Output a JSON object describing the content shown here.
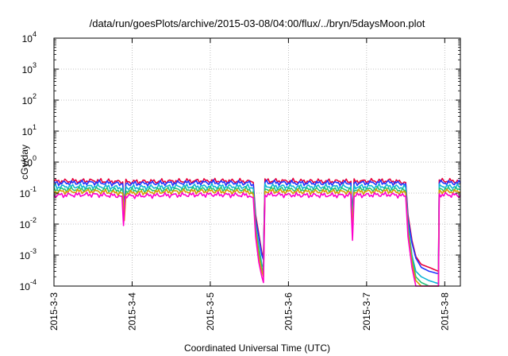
{
  "chart_data": {
    "type": "line",
    "title": "/data/run/goesPlots/archive/2015-03-08/04:00/flux/../bryn/5daysMoon.plot",
    "xlabel": "Coordinated Universal Time (UTC)",
    "ylabel": "cGy/day",
    "yscale": "log",
    "ylim": [
      0.0001,
      10000
    ],
    "xlim_days": [
      0,
      5.2
    ],
    "x_ticks": [
      {
        "label": "2015-3-3",
        "day": 0
      },
      {
        "label": "2015-3-4",
        "day": 1
      },
      {
        "label": "2015-3-5",
        "day": 2
      },
      {
        "label": "2015-3-6",
        "day": 3
      },
      {
        "label": "2015-3-7",
        "day": 4
      },
      {
        "label": "2015-3-8",
        "day": 5
      }
    ],
    "y_ticks": [
      {
        "base": "10",
        "exp": "-4",
        "value": 0.0001
      },
      {
        "base": "10",
        "exp": "-3",
        "value": 0.001
      },
      {
        "base": "10",
        "exp": "-2",
        "value": 0.01
      },
      {
        "base": "10",
        "exp": "-1",
        "value": 0.1
      },
      {
        "base": "10",
        "exp": "0",
        "value": 1
      },
      {
        "base": "10",
        "exp": "1",
        "value": 10
      },
      {
        "base": "10",
        "exp": "2",
        "value": 100
      },
      {
        "base": "10",
        "exp": "3",
        "value": 1000
      },
      {
        "base": "10",
        "exp": "4",
        "value": 10000
      }
    ],
    "grid": true,
    "series": [
      {
        "color": "#e8003a",
        "baseline": 0.24,
        "points": [
          [
            0,
            0.24
          ],
          [
            0.5,
            0.25
          ],
          [
            0.88,
            0.23
          ],
          [
            0.9,
            0.03
          ],
          [
            0.92,
            0.23
          ],
          [
            1.4,
            0.24
          ],
          [
            2.0,
            0.25
          ],
          [
            2.5,
            0.24
          ],
          [
            2.55,
            0.22
          ],
          [
            2.58,
            0.02
          ],
          [
            2.62,
            0.005
          ],
          [
            2.66,
            0.0012
          ],
          [
            2.68,
            0.0008
          ],
          [
            2.7,
            0.25
          ],
          [
            3.2,
            0.24
          ],
          [
            3.8,
            0.24
          ],
          [
            3.8,
            0.14
          ],
          [
            3.82,
            0.02
          ],
          [
            3.84,
            0.24
          ],
          [
            4.3,
            0.25
          ],
          [
            4.5,
            0.22
          ],
          [
            4.53,
            0.02
          ],
          [
            4.58,
            0.003
          ],
          [
            4.63,
            0.0009
          ],
          [
            4.7,
            0.0005
          ],
          [
            4.8,
            0.0004
          ],
          [
            4.92,
            0.0003
          ],
          [
            4.93,
            0.25
          ],
          [
            5.2,
            0.24
          ]
        ]
      },
      {
        "color": "#2233ff",
        "baseline": 0.21,
        "points": [
          [
            0,
            0.21
          ],
          [
            0.5,
            0.22
          ],
          [
            0.88,
            0.2
          ],
          [
            0.9,
            0.025
          ],
          [
            0.92,
            0.2
          ],
          [
            1.4,
            0.21
          ],
          [
            2.0,
            0.22
          ],
          [
            2.5,
            0.21
          ],
          [
            2.55,
            0.19
          ],
          [
            2.58,
            0.015
          ],
          [
            2.62,
            0.004
          ],
          [
            2.66,
            0.001
          ],
          [
            2.68,
            0.0007
          ],
          [
            2.7,
            0.22
          ],
          [
            3.2,
            0.21
          ],
          [
            3.8,
            0.21
          ],
          [
            3.8,
            0.12
          ],
          [
            3.82,
            0.018
          ],
          [
            3.84,
            0.21
          ],
          [
            4.3,
            0.22
          ],
          [
            4.5,
            0.2
          ],
          [
            4.53,
            0.015
          ],
          [
            4.58,
            0.0025
          ],
          [
            4.63,
            0.0008
          ],
          [
            4.7,
            0.0004
          ],
          [
            4.8,
            0.0003
          ],
          [
            4.92,
            0.00025
          ],
          [
            4.93,
            0.22
          ],
          [
            5.2,
            0.21
          ]
        ]
      },
      {
        "color": "#10b6d6",
        "baseline": 0.16,
        "points": [
          [
            0,
            0.16
          ],
          [
            0.5,
            0.165
          ],
          [
            0.88,
            0.15
          ],
          [
            0.9,
            0.02
          ],
          [
            0.92,
            0.15
          ],
          [
            1.4,
            0.16
          ],
          [
            2.0,
            0.165
          ],
          [
            2.5,
            0.16
          ],
          [
            2.55,
            0.14
          ],
          [
            2.58,
            0.01
          ],
          [
            2.62,
            0.002
          ],
          [
            2.66,
            0.0005
          ],
          [
            2.68,
            0.0004
          ],
          [
            2.7,
            0.165
          ],
          [
            3.2,
            0.16
          ],
          [
            3.8,
            0.16
          ],
          [
            3.8,
            0.09
          ],
          [
            3.82,
            0.012
          ],
          [
            3.84,
            0.16
          ],
          [
            4.3,
            0.165
          ],
          [
            4.5,
            0.15
          ],
          [
            4.53,
            0.01
          ],
          [
            4.58,
            0.001
          ],
          [
            4.63,
            0.0003
          ],
          [
            4.7,
            0.0002
          ],
          [
            4.8,
            0.00015
          ],
          [
            4.92,
            0.00012
          ],
          [
            4.93,
            0.165
          ],
          [
            5.2,
            0.16
          ]
        ]
      },
      {
        "color": "#22c47a",
        "baseline": 0.13,
        "points": [
          [
            0,
            0.13
          ],
          [
            0.5,
            0.135
          ],
          [
            0.88,
            0.12
          ],
          [
            0.9,
            0.016
          ],
          [
            0.92,
            0.12
          ],
          [
            1.4,
            0.13
          ],
          [
            2.0,
            0.135
          ],
          [
            2.5,
            0.13
          ],
          [
            2.55,
            0.11
          ],
          [
            2.58,
            0.008
          ],
          [
            2.62,
            0.0015
          ],
          [
            2.66,
            0.0004
          ],
          [
            2.68,
            0.00025
          ],
          [
            2.7,
            0.135
          ],
          [
            3.2,
            0.13
          ],
          [
            3.8,
            0.13
          ],
          [
            3.8,
            0.07
          ],
          [
            3.82,
            0.01
          ],
          [
            3.84,
            0.13
          ],
          [
            4.3,
            0.135
          ],
          [
            4.5,
            0.12
          ],
          [
            4.53,
            0.008
          ],
          [
            4.58,
            0.0008
          ],
          [
            4.63,
            0.0002
          ],
          [
            4.7,
            0.00013
          ],
          [
            4.8,
            0.0001
          ],
          [
            4.92,
            0.0001
          ],
          [
            4.93,
            0.135
          ],
          [
            5.2,
            0.13
          ]
        ]
      },
      {
        "color": "#d4a000",
        "baseline": 0.11,
        "points": [
          [
            0,
            0.11
          ],
          [
            0.5,
            0.115
          ],
          [
            0.88,
            0.1
          ],
          [
            0.9,
            0.013
          ],
          [
            0.92,
            0.1
          ],
          [
            1.4,
            0.11
          ],
          [
            2.0,
            0.115
          ],
          [
            2.5,
            0.11
          ],
          [
            2.55,
            0.09
          ],
          [
            2.58,
            0.006
          ],
          [
            2.62,
            0.001
          ],
          [
            2.66,
            0.0003
          ],
          [
            2.68,
            0.0002
          ],
          [
            2.7,
            0.115
          ],
          [
            3.2,
            0.11
          ],
          [
            3.8,
            0.11
          ],
          [
            3.8,
            0.06
          ],
          [
            3.82,
            0.008
          ],
          [
            3.84,
            0.11
          ],
          [
            4.3,
            0.115
          ],
          [
            4.5,
            0.1
          ],
          [
            4.53,
            0.006
          ],
          [
            4.58,
            0.0006
          ],
          [
            4.63,
            0.00015
          ],
          [
            4.7,
            0.0001
          ],
          [
            4.8,
            0.0001
          ],
          [
            4.92,
            0.0001
          ],
          [
            4.93,
            0.115
          ],
          [
            5.2,
            0.11
          ]
        ]
      },
      {
        "color": "#ff00cc",
        "baseline": 0.085,
        "points": [
          [
            0,
            0.085
          ],
          [
            0.5,
            0.09
          ],
          [
            0.87,
            0.08
          ],
          [
            0.89,
            0.009
          ],
          [
            0.91,
            0.08
          ],
          [
            1.4,
            0.085
          ],
          [
            2.0,
            0.09
          ],
          [
            2.5,
            0.085
          ],
          [
            2.55,
            0.07
          ],
          [
            2.58,
            0.004
          ],
          [
            2.62,
            0.0006
          ],
          [
            2.66,
            0.0002
          ],
          [
            2.68,
            0.00013
          ],
          [
            2.7,
            0.09
          ],
          [
            3.2,
            0.085
          ],
          [
            3.8,
            0.085
          ],
          [
            3.8,
            0.04
          ],
          [
            3.82,
            0.003
          ],
          [
            3.84,
            0.085
          ],
          [
            4.3,
            0.09
          ],
          [
            4.5,
            0.08
          ],
          [
            4.53,
            0.004
          ],
          [
            4.58,
            0.0004
          ],
          [
            4.63,
            0.0001
          ],
          [
            4.7,
            0.0001
          ],
          [
            4.8,
            0.0001
          ],
          [
            4.92,
            0.0001
          ],
          [
            4.93,
            0.09
          ],
          [
            5.2,
            0.085
          ]
        ]
      }
    ]
  }
}
